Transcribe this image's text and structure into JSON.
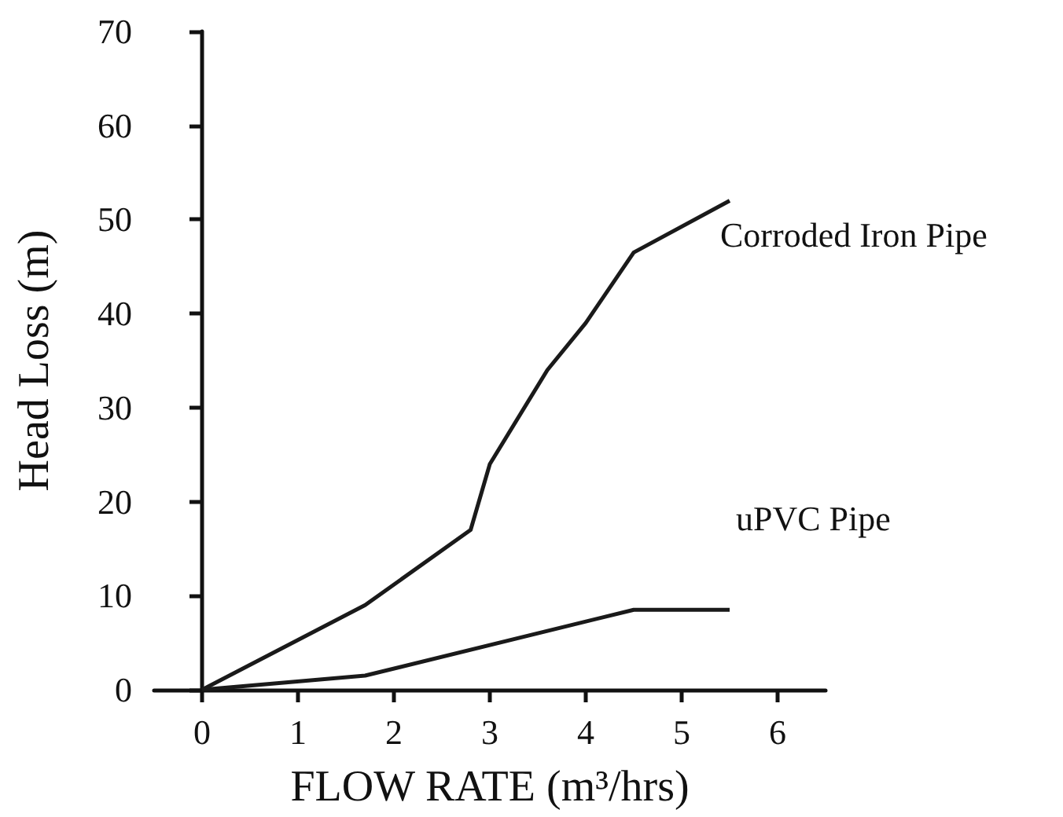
{
  "chart_data": {
    "type": "line",
    "xlabel": "FLOW RATE (m³/hrs)",
    "ylabel": "Head Loss (m)",
    "series": [
      {
        "name": "Corroded Iron Pipe",
        "color": "#1a1a1a",
        "x": [
          0,
          1.7,
          2.8,
          3.0,
          3.6,
          4.0,
          4.5,
          5.5
        ],
        "values": [
          0,
          9,
          17,
          24,
          34,
          39,
          46.5,
          52
        ]
      },
      {
        "name": "uPVC Pipe",
        "color": "#1a1a1a",
        "x": [
          0,
          1.7,
          4.5,
          5.5
        ],
        "values": [
          0,
          1.5,
          8.5,
          8.5
        ]
      }
    ],
    "xlim": [
      -0.5,
      6.5
    ],
    "xticks": [
      0,
      1,
      2,
      3,
      4,
      5,
      6
    ],
    "ylim": [
      0,
      70
    ],
    "yticks": [
      0,
      10,
      20,
      30,
      40,
      50,
      60,
      70
    ],
    "grid": false,
    "legend": false,
    "marker": "none",
    "line_style": "solid"
  }
}
